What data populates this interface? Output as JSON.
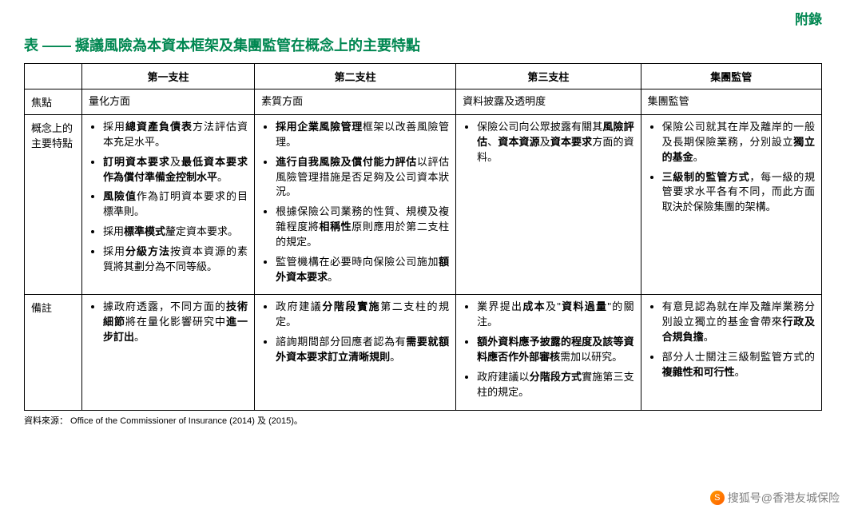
{
  "appendix_label": "附錄",
  "title": "表 —— 擬議風險為本資本框架及集團監管在概念上的主要特點",
  "columns": {
    "blank": "",
    "col1": "第一支柱",
    "col2": "第二支柱",
    "col3": "第三支柱",
    "col4": "集團監管"
  },
  "row_focus": {
    "label": "焦點",
    "c1": "量化方面",
    "c2": "素質方面",
    "c3": "資料披露及透明度",
    "c4": "集團監管"
  },
  "row_concept": {
    "label": "概念上的主要特點",
    "c1": [
      "採用<strong>總資產負債表</strong>方法評估資本充足水平。",
      "<strong>訂明資本要求</strong>及<strong>最低資本要求作為償付準備金控制水平</strong>。",
      "<strong>風險值</strong>作為訂明資本要求的目標準則。",
      "採用<strong>標準模式</strong>釐定資本要求。",
      "採用<strong>分級方法</strong>按資本資源的素質將其劃分為不同等級。"
    ],
    "c2": [
      "<strong>採用企業風險管理</strong>框架以改善風險管理。",
      "<strong>進行自我風險及償付能力評估</strong>以評估風險管理措施是否足夠及公司資本狀況。",
      "根據保險公司業務的性質、規模及複雜程度將<strong>相稱性</strong>原則應用於第二支柱的規定。",
      "監管機構在必要時向保險公司施加<strong>額外資本要求</strong>。"
    ],
    "c3": [
      "保險公司向公眾披露有關其<strong>風險評估</strong>、<strong>資本資源</strong>及<strong>資本要求</strong>方面的資料。"
    ],
    "c4": [
      "保險公司就其在岸及離岸的一般及長期保險業務，分別設立<strong>獨立的基金</strong>。",
      "<strong>三級制的監管方式</strong>，每一級的規管要求水平各有不同，而此方面取決於保險集團的架構。"
    ]
  },
  "row_notes": {
    "label": "備註",
    "c1": [
      "據政府透露，不同方面的<strong>技術細節</strong>將在量化影響研究中<strong>進一步訂出</strong>。"
    ],
    "c2": [
      "政府建議<strong>分階段實施</strong>第二支柱的規定。",
      "諮詢期間部分回應者認為有<strong>需要就額外資本要求訂立清晰規則</strong>。"
    ],
    "c3": [
      "業界提出<strong>成本</strong>及\"<strong>資料過量</strong>\"的關注。",
      "<strong>額外資料應予披露的程度及該等資料應否作外部審核</strong>需加以研究。",
      "政府建議以<strong>分階段方式</strong>實施第三支柱的規定。"
    ],
    "c4": [
      "有意見認為就在岸及離岸業務分別設立獨立的基金會帶來<strong>行政及合規負擔</strong>。",
      "部分人士關注三級制監管方式的<strong>複雜性和可行性</strong>。"
    ]
  },
  "source": "資料來源： Office of the Commissioner of Insurance (2014) 及 (2015)。",
  "watermark": "搜狐号@香港友城保险"
}
